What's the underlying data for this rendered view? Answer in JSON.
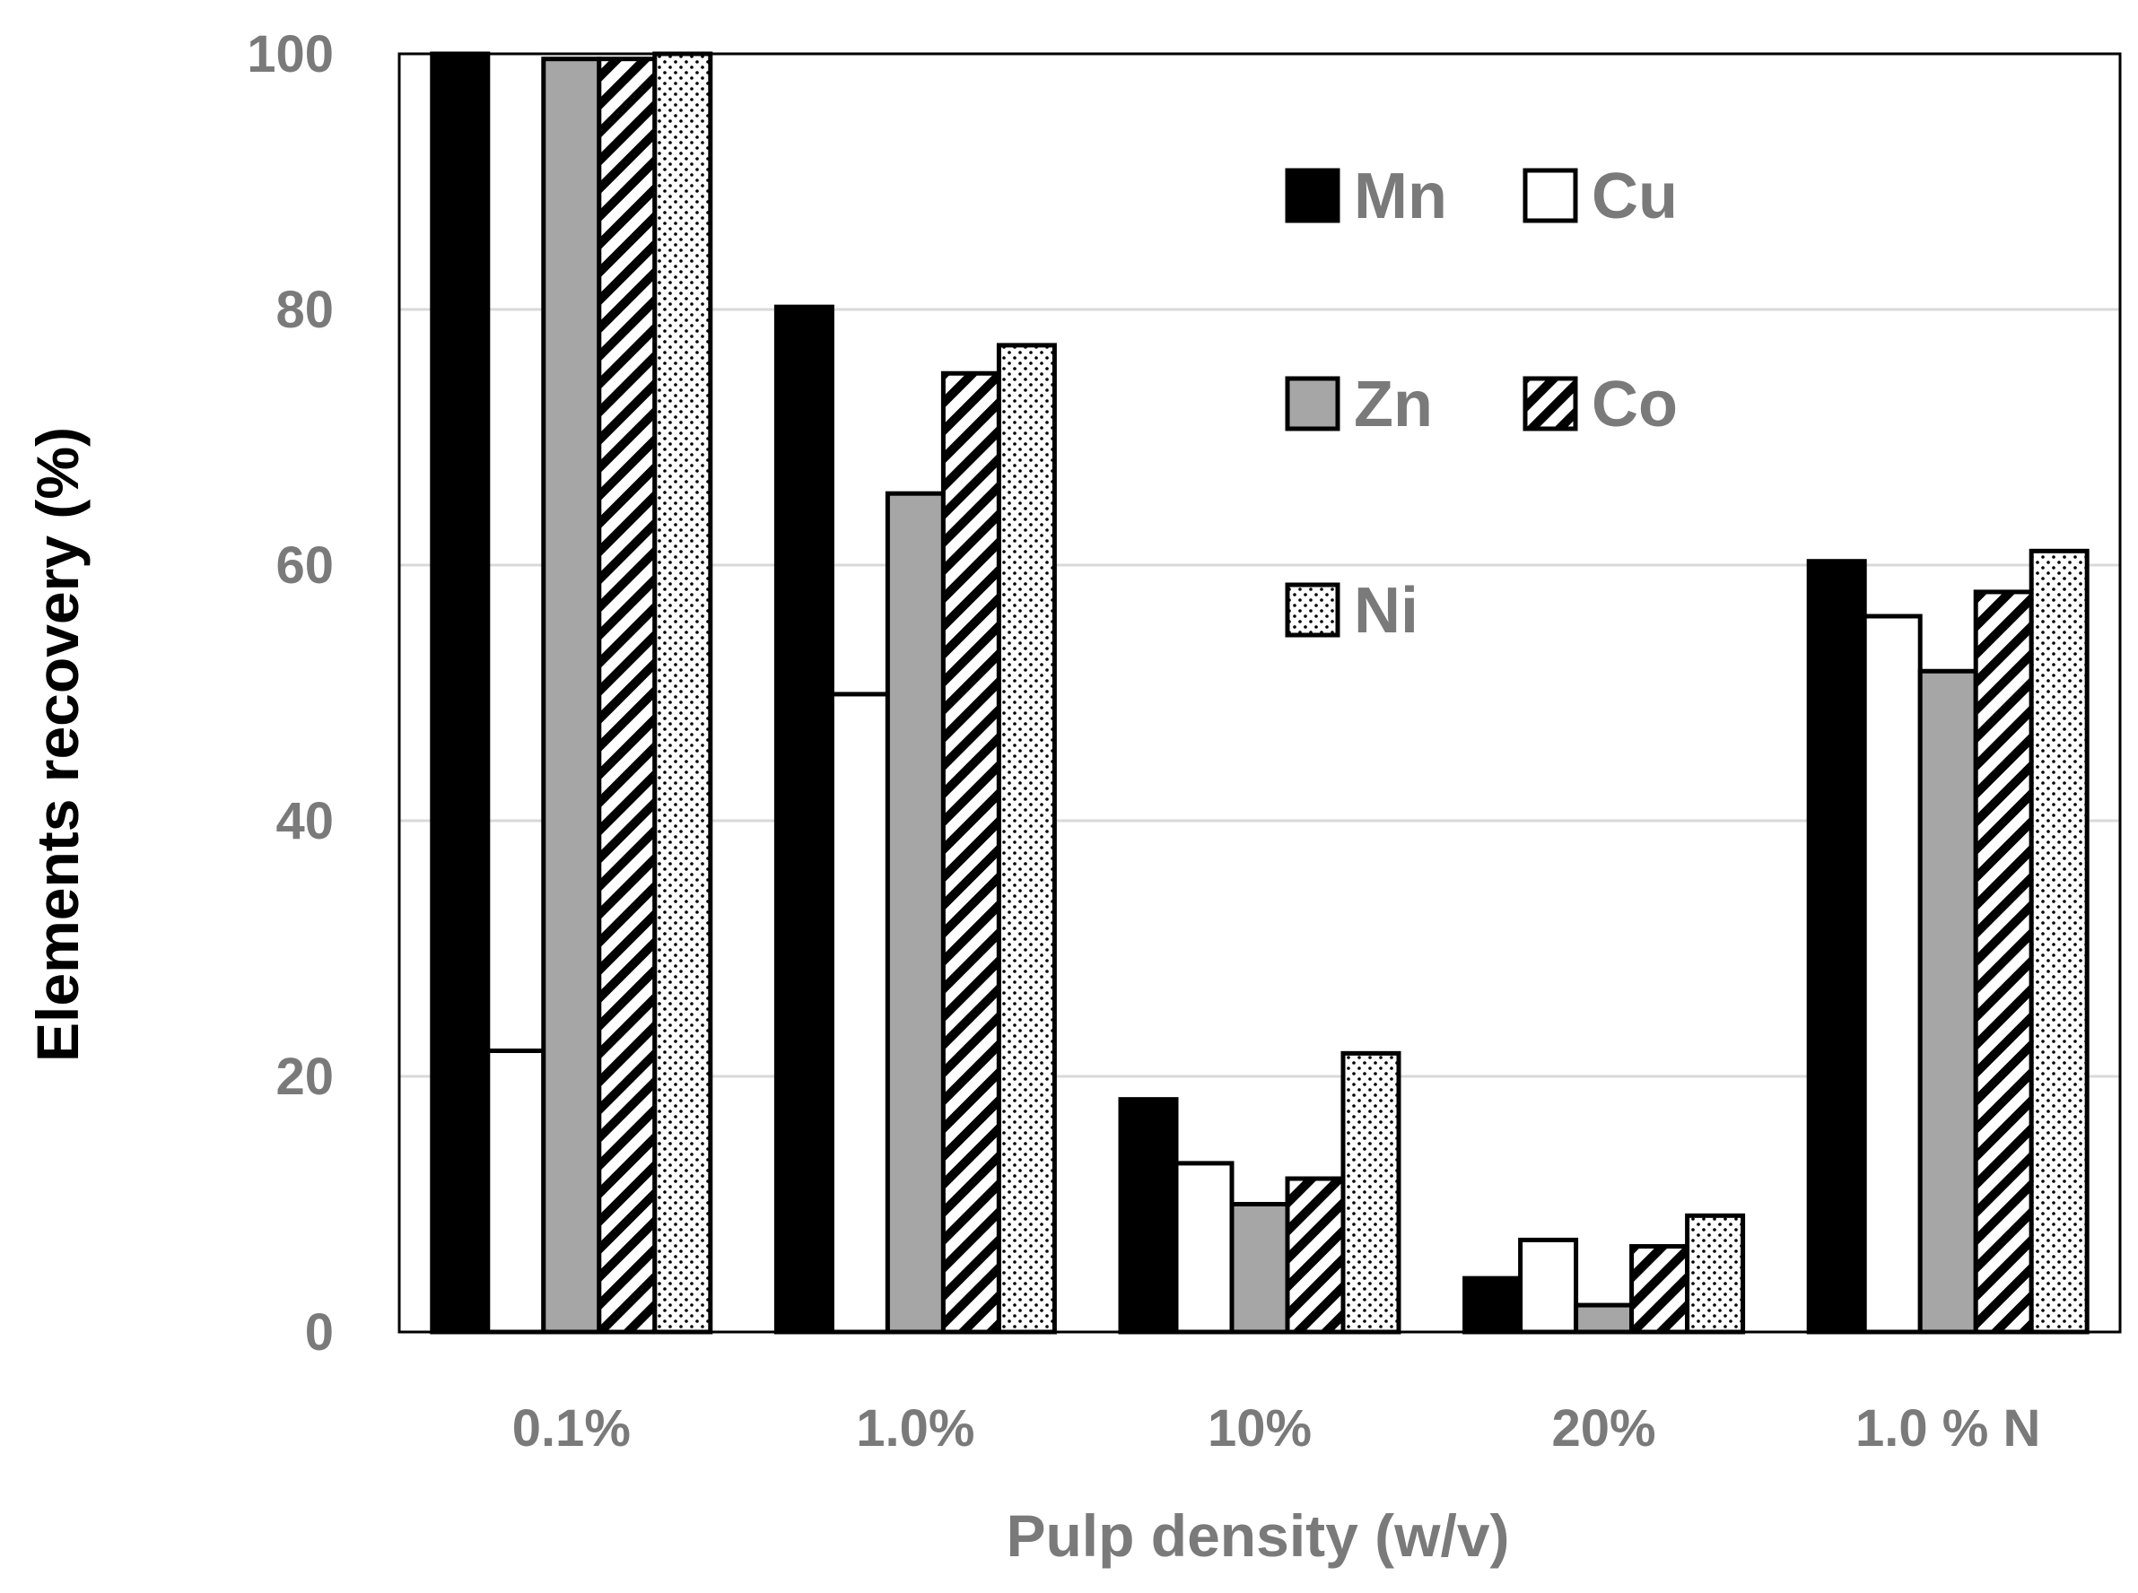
{
  "chart_data": {
    "type": "bar",
    "title": "",
    "xlabel": "Pulp density (w/v)",
    "ylabel": "Elements  recovery (%)",
    "ylim": [
      0,
      100
    ],
    "yticks": [
      "0",
      "20",
      "40",
      "60",
      "80",
      "100"
    ],
    "grid": true,
    "legend_position": "top-right",
    "categories": [
      "0.1%",
      "1.0%",
      "10%",
      "20%",
      "1.0 % N"
    ],
    "series": [
      {
        "name": "Mn",
        "pattern": "solid-black",
        "values": [
          100,
          80.2,
          18.2,
          4.2,
          60.3
        ]
      },
      {
        "name": "Cu",
        "pattern": "white",
        "values": [
          22,
          49.9,
          13.2,
          7.2,
          56
        ]
      },
      {
        "name": "Zn",
        "pattern": "gray",
        "values": [
          99.6,
          65.6,
          10,
          2.1,
          51.7
        ]
      },
      {
        "name": "Co",
        "pattern": "diagonal-hatch",
        "values": [
          99.6,
          75,
          12,
          6.7,
          57.9
        ]
      },
      {
        "name": "Ni",
        "pattern": "dotted",
        "values": [
          100,
          77.2,
          21.8,
          9.1,
          61.1
        ]
      }
    ]
  },
  "colors": {
    "mn_fill": "#000000",
    "cu_fill": "#ffffff",
    "zn_fill": "#a6a6a6",
    "gridline": "#d9d9d9",
    "label_gray": "#7a7a7a",
    "ylabel_color": "#000000"
  }
}
